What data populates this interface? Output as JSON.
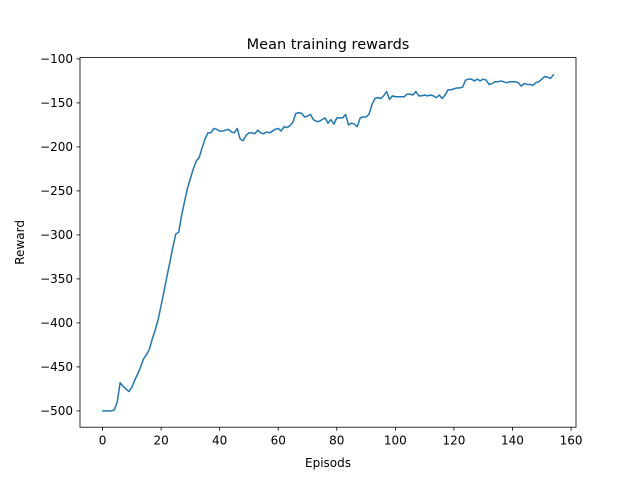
{
  "chart_data": {
    "type": "line",
    "title": "Mean training rewards",
    "xlabel": "Episods",
    "ylabel": "Reward",
    "xlim": [
      -7.7,
      161.7
    ],
    "ylim": [
      -518.5,
      -98.5
    ],
    "xticks": [
      0,
      20,
      40,
      60,
      80,
      100,
      120,
      140,
      160
    ],
    "yticks": [
      -500,
      -450,
      -400,
      -350,
      -300,
      -250,
      -200,
      -150,
      -100
    ],
    "xtick_labels": [
      "0",
      "20",
      "40",
      "60",
      "80",
      "100",
      "120",
      "140",
      "160"
    ],
    "ytick_labels": [
      "−500",
      "−450",
      "−400",
      "−350",
      "−300",
      "−250",
      "−200",
      "−150",
      "−100"
    ],
    "grid": false,
    "line_color": "#1f77b4",
    "series": [
      {
        "x": [
          0,
          1,
          2,
          3,
          4,
          5,
          6,
          7,
          8,
          9,
          10,
          11,
          12,
          13,
          14,
          15,
          16,
          17,
          18,
          19,
          20,
          21,
          22,
          23,
          24,
          25,
          26,
          27,
          28,
          29,
          30,
          31,
          32,
          33,
          34,
          35,
          36,
          37,
          38,
          39,
          40,
          41,
          42,
          43,
          44,
          45,
          46,
          47,
          48,
          49,
          50,
          51,
          52,
          53,
          54,
          55,
          56,
          57,
          58,
          59,
          60,
          61,
          62,
          63,
          64,
          65,
          66,
          67,
          68,
          69,
          70,
          71,
          72,
          73,
          74,
          75,
          76,
          77,
          78,
          79,
          80,
          81,
          82,
          83,
          84,
          85,
          86,
          87,
          88,
          89,
          90,
          91,
          92,
          93,
          94,
          95,
          96,
          97,
          98,
          99,
          100,
          101,
          102,
          103,
          104,
          105,
          106,
          107,
          108,
          109,
          110,
          111,
          112,
          113,
          114,
          115,
          116,
          117,
          118,
          119,
          120,
          121,
          122,
          123,
          124,
          125,
          126,
          127,
          128,
          129,
          130,
          131,
          132,
          133,
          134,
          135,
          136,
          137,
          138,
          139,
          140,
          141,
          142,
          143,
          144,
          145,
          146,
          147,
          148,
          149,
          150,
          151,
          152,
          153,
          154
        ],
        "y": [
          -500,
          -500,
          -500,
          -500,
          -499,
          -490,
          -468,
          -472,
          -475,
          -478,
          -473,
          -465,
          -458,
          -450,
          -441,
          -436,
          -430,
          -418,
          -408,
          -396,
          -380,
          -364,
          -347,
          -331,
          -314,
          -299,
          -297,
          -278,
          -262,
          -247,
          -236,
          -225,
          -216,
          -212,
          -201,
          -191,
          -184,
          -184,
          -179,
          -180,
          -182,
          -182,
          -181,
          -180,
          -183,
          -184,
          -179,
          -191,
          -193,
          -187,
          -184,
          -184,
          -185,
          -181,
          -184,
          -185,
          -183,
          -184,
          -182,
          -180,
          -179,
          -182,
          -177,
          -178,
          -176,
          -172,
          -162,
          -161,
          -162,
          -166,
          -165,
          -163,
          -169,
          -171,
          -171,
          -169,
          -167,
          -173,
          -169,
          -174,
          -167,
          -167,
          -167,
          -163,
          -175,
          -173,
          -174,
          -177,
          -167,
          -166,
          -166,
          -163,
          -152,
          -145,
          -144,
          -145,
          -142,
          -137,
          -146,
          -142,
          -143,
          -143,
          -143,
          -143,
          -140,
          -140,
          -141,
          -137,
          -142,
          -142,
          -141,
          -142,
          -141,
          -142,
          -144,
          -141,
          -145,
          -141,
          -135,
          -135,
          -134,
          -133,
          -133,
          -132,
          -124,
          -123,
          -123,
          -125,
          -123,
          -125,
          -123,
          -124,
          -129,
          -128,
          -126,
          -126,
          -125,
          -126,
          -127,
          -126,
          -126,
          -126,
          -127,
          -131,
          -128,
          -129,
          -129,
          -130,
          -127,
          -126,
          -123,
          -120,
          -121,
          -122,
          -118
        ]
      }
    ]
  }
}
